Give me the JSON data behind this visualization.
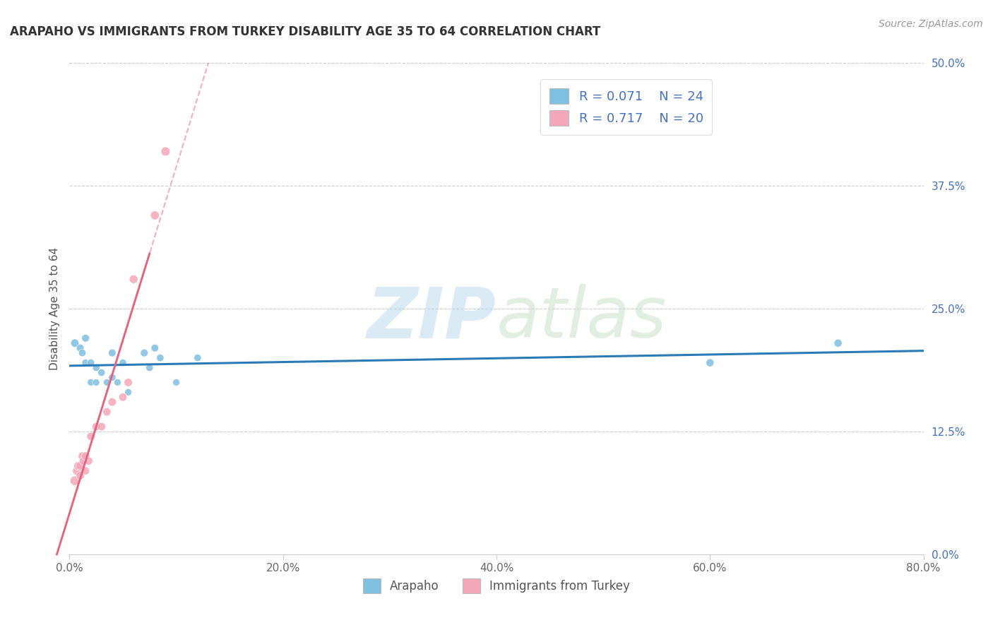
{
  "title": "ARAPAHO VS IMMIGRANTS FROM TURKEY DISABILITY AGE 35 TO 64 CORRELATION CHART",
  "source": "Source: ZipAtlas.com",
  "ylabel": "Disability Age 35 to 64",
  "xlabel_ticks": [
    "0.0%",
    "20.0%",
    "40.0%",
    "60.0%",
    "80.0%"
  ],
  "xlabel_vals": [
    0.0,
    0.2,
    0.4,
    0.6,
    0.8
  ],
  "ylabel_ticks": [
    "0.0%",
    "12.5%",
    "25.0%",
    "37.5%",
    "50.0%"
  ],
  "ylabel_vals": [
    0.0,
    0.125,
    0.25,
    0.375,
    0.5
  ],
  "xlim": [
    0.0,
    0.8
  ],
  "ylim": [
    0.0,
    0.5
  ],
  "watermark_zip": "ZIP",
  "watermark_atlas": "atlas",
  "legend_r1": "R = 0.071",
  "legend_n1": "N = 24",
  "legend_r2": "R = 0.717",
  "legend_n2": "N = 20",
  "arapaho_color": "#7fbfdf",
  "turkey_color": "#f4a7b8",
  "arapaho_line_color": "#2a7ab8",
  "turkey_line_color": "#e8607a",
  "arapaho_scatter": [
    [
      0.005,
      0.215
    ],
    [
      0.01,
      0.21
    ],
    [
      0.012,
      0.205
    ],
    [
      0.015,
      0.22
    ],
    [
      0.015,
      0.195
    ],
    [
      0.02,
      0.195
    ],
    [
      0.02,
      0.175
    ],
    [
      0.025,
      0.19
    ],
    [
      0.025,
      0.175
    ],
    [
      0.03,
      0.185
    ],
    [
      0.035,
      0.175
    ],
    [
      0.04,
      0.205
    ],
    [
      0.04,
      0.18
    ],
    [
      0.045,
      0.175
    ],
    [
      0.05,
      0.195
    ],
    [
      0.055,
      0.165
    ],
    [
      0.07,
      0.205
    ],
    [
      0.075,
      0.19
    ],
    [
      0.08,
      0.21
    ],
    [
      0.085,
      0.2
    ],
    [
      0.1,
      0.175
    ],
    [
      0.12,
      0.2
    ],
    [
      0.6,
      0.195
    ],
    [
      0.72,
      0.215
    ]
  ],
  "turkey_scatter": [
    [
      0.005,
      0.075
    ],
    [
      0.007,
      0.085
    ],
    [
      0.008,
      0.09
    ],
    [
      0.01,
      0.09
    ],
    [
      0.01,
      0.08
    ],
    [
      0.012,
      0.1
    ],
    [
      0.013,
      0.095
    ],
    [
      0.015,
      0.085
    ],
    [
      0.015,
      0.1
    ],
    [
      0.018,
      0.095
    ],
    [
      0.02,
      0.12
    ],
    [
      0.025,
      0.13
    ],
    [
      0.03,
      0.13
    ],
    [
      0.035,
      0.145
    ],
    [
      0.04,
      0.155
    ],
    [
      0.05,
      0.16
    ],
    [
      0.055,
      0.175
    ],
    [
      0.06,
      0.28
    ],
    [
      0.08,
      0.345
    ],
    [
      0.09,
      0.41
    ]
  ],
  "arapaho_dot_sizes": [
    70,
    60,
    55,
    60,
    55,
    55,
    50,
    55,
    50,
    55,
    50,
    60,
    55,
    50,
    55,
    50,
    60,
    55,
    60,
    55,
    50,
    55,
    65,
    65
  ],
  "turkey_dot_sizes": [
    90,
    80,
    75,
    75,
    70,
    70,
    70,
    65,
    70,
    65,
    70,
    70,
    70,
    70,
    70,
    70,
    70,
    75,
    80,
    85
  ]
}
